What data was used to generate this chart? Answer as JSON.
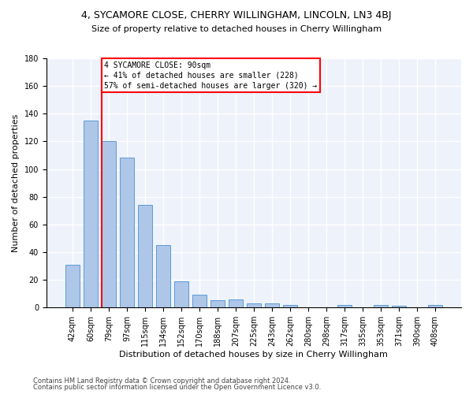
{
  "title": "4, SYCAMORE CLOSE, CHERRY WILLINGHAM, LINCOLN, LN3 4BJ",
  "subtitle": "Size of property relative to detached houses in Cherry Willingham",
  "xlabel": "Distribution of detached houses by size in Cherry Willingham",
  "ylabel": "Number of detached properties",
  "footnote1": "Contains HM Land Registry data © Crown copyright and database right 2024.",
  "footnote2": "Contains public sector information licensed under the Open Government Licence v3.0.",
  "bar_labels": [
    "42sqm",
    "60sqm",
    "79sqm",
    "97sqm",
    "115sqm",
    "134sqm",
    "152sqm",
    "170sqm",
    "188sqm",
    "207sqm",
    "225sqm",
    "243sqm",
    "262sqm",
    "280sqm",
    "298sqm",
    "317sqm",
    "335sqm",
    "353sqm",
    "371sqm",
    "390sqm",
    "408sqm"
  ],
  "bar_values": [
    31,
    135,
    120,
    108,
    74,
    45,
    19,
    9,
    5,
    6,
    3,
    3,
    2,
    0,
    0,
    2,
    0,
    2,
    1,
    0,
    2
  ],
  "bar_color": "#aec6e8",
  "bar_edge_color": "#5b9bd5",
  "background_color": "#eef2fb",
  "grid_color": "#ffffff",
  "annotation_line1": "4 SYCAMORE CLOSE: 90sqm",
  "annotation_line2": "← 41% of detached houses are smaller (228)",
  "annotation_line3": "57% of semi-detached houses are larger (320) →",
  "vline_bar_index": 2,
  "vline_color": "red",
  "annotation_box_color": "red",
  "ylim": [
    0,
    180
  ],
  "yticks": [
    0,
    20,
    40,
    60,
    80,
    100,
    120,
    140,
    160,
    180
  ],
  "title_fontsize": 9,
  "subtitle_fontsize": 8,
  "ylabel_fontsize": 8,
  "xlabel_fontsize": 8,
  "tick_fontsize": 7,
  "footnote_fontsize": 6
}
